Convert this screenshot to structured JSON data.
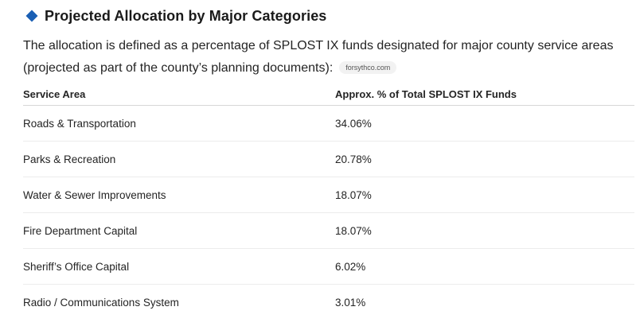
{
  "heading": {
    "icon": "blue-diamond-icon",
    "icon_color": "#1a5fb4",
    "title": "Projected Allocation by Major Categories"
  },
  "intro": {
    "text": "The allocation is defined as a percentage of SPLOST IX funds designated for major county service areas (projected as part of the county’s planning documents):",
    "source": "forsythco.com"
  },
  "table": {
    "headers": [
      "Service Area",
      "Approx. % of Total SPLOST IX Funds"
    ],
    "rows": [
      {
        "area": "Roads & Transportation",
        "percent": "34.06%"
      },
      {
        "area": "Parks & Recreation",
        "percent": "20.78%"
      },
      {
        "area": "Water & Sewer Improvements",
        "percent": "18.07%"
      },
      {
        "area": "Fire Department Capital",
        "percent": "18.07%"
      },
      {
        "area": "Sheriff’s Office Capital",
        "percent": "6.02%"
      },
      {
        "area": "Radio / Communications System",
        "percent": "3.01%"
      }
    ]
  }
}
